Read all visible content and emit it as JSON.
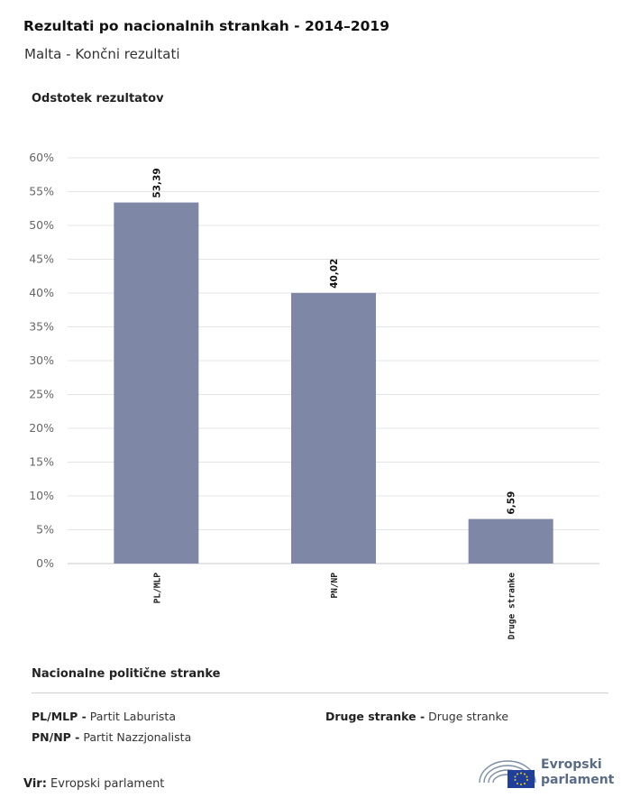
{
  "title": "Rezultati po nacionalnih strankah - 2014–2019",
  "subtitle": "Malta - Končni rezultati",
  "chart_data": {
    "type": "bar",
    "ylabel": "Odstotek rezultatov",
    "xlabel": "",
    "categories": [
      "PL/MLP",
      "PN/NP",
      "Druge stranke"
    ],
    "values": [
      53.39,
      40.02,
      6.59
    ],
    "value_labels": [
      "53,39",
      "40,02",
      "6,59"
    ],
    "ylim": [
      0,
      60
    ],
    "yticks": [
      0,
      5,
      10,
      15,
      20,
      25,
      30,
      35,
      40,
      45,
      50,
      55,
      60
    ],
    "ytick_labels": [
      "0%",
      "5%",
      "10%",
      "15%",
      "20%",
      "25%",
      "30%",
      "35%",
      "40%",
      "45%",
      "50%",
      "55%",
      "60%"
    ],
    "grid": true,
    "bar_color": "#7e88a6"
  },
  "legend": {
    "title": "Nacionalne politične stranke",
    "items": [
      {
        "abbr": "PL/MLP -",
        "name": "Partit Laburista"
      },
      {
        "abbr": "PN/NP -",
        "name": "Partit Nazzjonalista"
      },
      {
        "abbr": "Druge stranke -",
        "name": "Druge stranke"
      }
    ]
  },
  "source": {
    "label": "Vir:",
    "text": "Evropski parlament"
  },
  "logo": {
    "line1": "Evropski",
    "line2": "parlament"
  }
}
